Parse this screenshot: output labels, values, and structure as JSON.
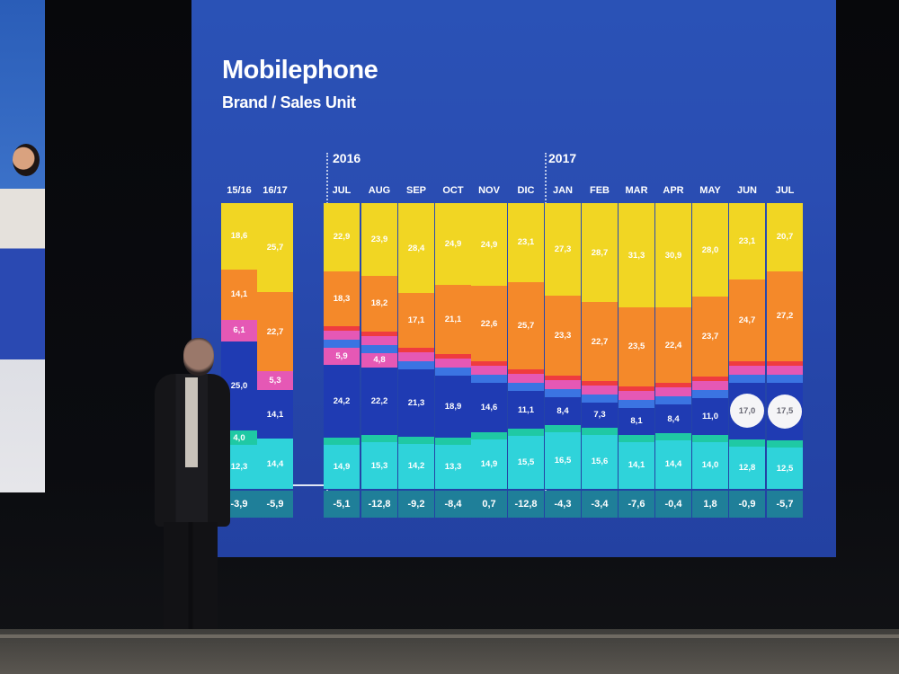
{
  "title": "Mobilephone",
  "subtitle": "Brand / Sales Unit",
  "years": [
    "2016",
    "2017"
  ],
  "colors": {
    "yellow": "#f1d623",
    "orange": "#f4892a",
    "red": "#ef3b3f",
    "pink": "#e558b5",
    "blue_light": "#3b74e2",
    "blue_mid": "#2e53c9",
    "blue_dark": "#1f3bb3",
    "teal": "#1fc9a4",
    "cyan": "#2fd3da",
    "delta": "#1f7f99"
  },
  "chart_data": {
    "type": "bar",
    "stacked": true,
    "categories": [
      "15/16",
      "16/17",
      "JUL",
      "AUG",
      "SEP",
      "OCT",
      "NOV",
      "DIC",
      "JAN",
      "FEB",
      "MAR",
      "APR",
      "MAY",
      "JUN",
      "JUL"
    ],
    "series": [
      {
        "color": "yellow",
        "values": [
          18.6,
          25.7,
          22.9,
          23.9,
          28.4,
          24.9,
          24.9,
          23.1,
          27.3,
          28.7,
          31.3,
          30.9,
          28.0,
          23.1,
          20.7
        ],
        "labels": [
          "18,6",
          "25,7",
          "22,9",
          "23,9",
          "28,4",
          "24,9",
          "24,9",
          "23,1",
          "27,3",
          "28,7",
          "31,3",
          "30,9",
          "28,0",
          "23,1",
          "20,7"
        ]
      },
      {
        "color": "orange",
        "values": [
          14.1,
          22.7,
          18.3,
          18.2,
          17.1,
          21.1,
          22.6,
          25.7,
          23.3,
          22.7,
          23.5,
          22.4,
          23.7,
          24.7,
          27.2
        ],
        "labels": [
          "14,1",
          "22,7",
          "18,3",
          "18,2",
          "17,1",
          "21,1",
          "22,6",
          "25,7",
          "23,3",
          "22,7",
          "23,5",
          "22,4",
          "23,7",
          "24,7",
          "27,2"
        ]
      },
      {
        "color": "pink",
        "values": [
          6.1,
          5.3,
          5.9,
          4.8,
          null,
          null,
          null,
          null,
          null,
          null,
          null,
          null,
          null,
          null,
          null
        ],
        "labels": [
          "6,1",
          "5,3",
          "5,9",
          "4,8",
          "",
          "",
          "",
          "",
          "",
          "",
          "",
          "",
          "",
          "",
          ""
        ]
      },
      {
        "color": "blue_dark",
        "values": [
          25.0,
          14.1,
          24.2,
          22.2,
          21.3,
          18.9,
          14.6,
          11.1,
          8.4,
          7.3,
          8.1,
          8.4,
          11.0,
          17.0,
          17.5
        ],
        "labels": [
          "25,0",
          "14,1",
          "24,2",
          "22,2",
          "21,3",
          "18,9",
          "14,6",
          "11,1",
          "8,4",
          "7,3",
          "8,1",
          "8,4",
          "11,0",
          "17,0",
          "17,5"
        ]
      },
      {
        "color": "teal",
        "values": [
          4.0,
          null,
          null,
          null,
          null,
          null,
          null,
          null,
          null,
          null,
          null,
          null,
          null,
          null,
          null
        ],
        "labels": [
          "4,0",
          "",
          "",
          "",
          "",
          "",
          "",
          "",
          "",
          "",
          "",
          "",
          "",
          "",
          ""
        ]
      },
      {
        "color": "cyan",
        "values": [
          12.3,
          14.4,
          14.9,
          15.3,
          14.2,
          13.3,
          14.9,
          15.5,
          16.5,
          15.6,
          14.1,
          14.4,
          14.0,
          12.8,
          12.5
        ],
        "labels": [
          "12,3",
          "14,4",
          "14,9",
          "15,3",
          "14,2",
          "13,3",
          "14,9",
          "15,5",
          "16,5",
          "15,6",
          "14,1",
          "14,4",
          "14,0",
          "12,8",
          "12,5"
        ]
      }
    ],
    "deltas": [
      -3.9,
      -5.9,
      -5.1,
      -12.8,
      -9.2,
      -8.4,
      0.7,
      -12.8,
      -4.3,
      -3.4,
      -7.6,
      -0.4,
      1.8,
      -0.9,
      -5.7
    ],
    "delta_labels": [
      "-3,9",
      "-5,9",
      "-5,1",
      "-12,8",
      "-9,2",
      "-8,4",
      "0,7",
      "-12,8",
      "-4,3",
      "-3,4",
      "-7,6",
      "-0,4",
      "1,8",
      "-0,9",
      "-5,7"
    ],
    "circled_series": "blue_dark",
    "circled_categories": [
      13,
      14
    ]
  }
}
